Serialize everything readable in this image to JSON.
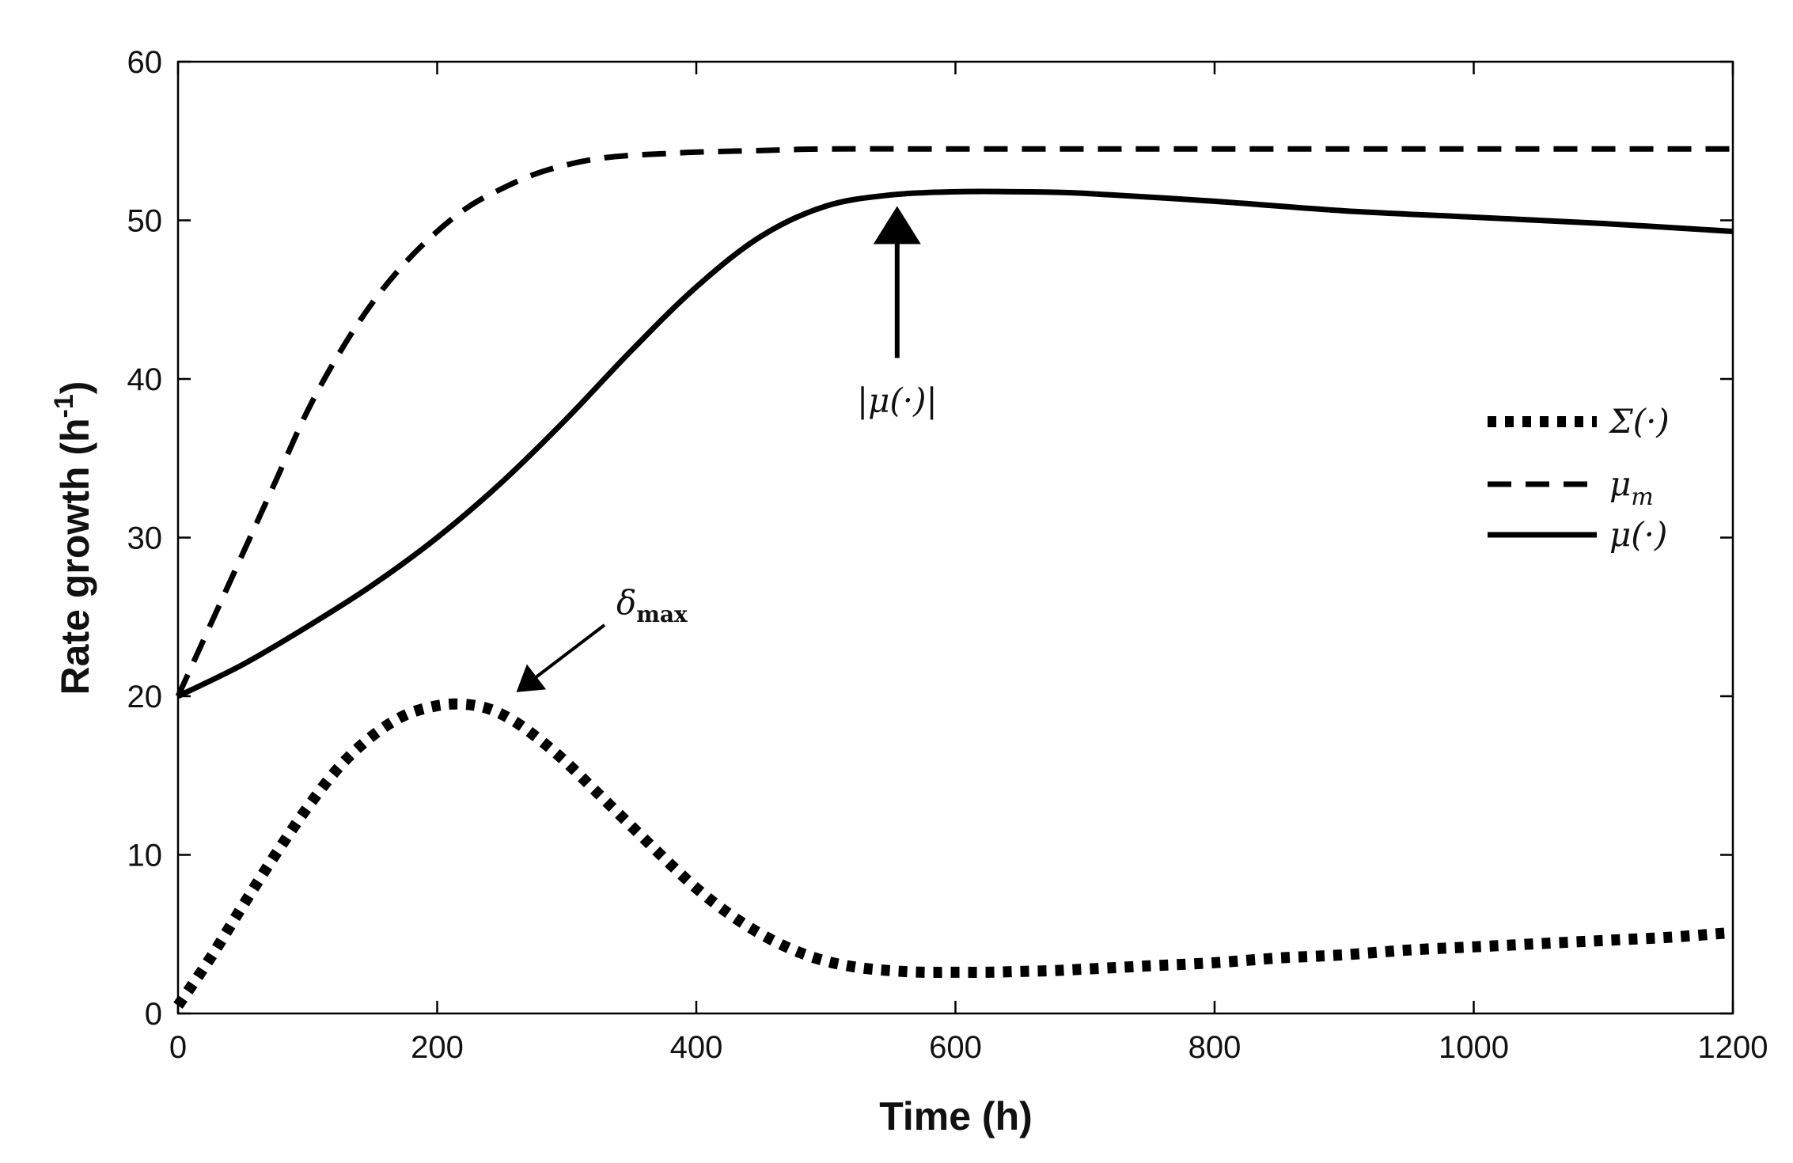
{
  "chart_data": {
    "type": "line",
    "title": "",
    "xlabel": "Time (h)",
    "ylabel": "Rate growth (h",
    "ylabel_superscript": "-1",
    "ylabel_suffix": ")",
    "xlim": [
      0,
      1200
    ],
    "ylim": [
      0,
      60
    ],
    "xticks": [
      0,
      200,
      400,
      600,
      800,
      1000,
      1200
    ],
    "yticks": [
      0,
      10,
      20,
      30,
      40,
      50,
      60
    ],
    "grid": false,
    "legend_position": "right",
    "series": [
      {
        "name": "Σ(·)",
        "style": "dotted",
        "x": [
          0,
          25,
          50,
          75,
          100,
          125,
          150,
          175,
          200,
          220,
          240,
          260,
          280,
          300,
          325,
          350,
          375,
          400,
          425,
          450,
          475,
          500,
          525,
          550,
          575,
          600,
          625,
          650,
          675,
          700,
          750,
          800,
          850,
          900,
          950,
          1000,
          1050,
          1100,
          1150,
          1200
        ],
        "values": [
          0.5,
          3.5,
          6.8,
          10.0,
          13.0,
          15.6,
          17.5,
          18.8,
          19.4,
          19.5,
          19.2,
          18.4,
          17.2,
          15.8,
          13.8,
          11.8,
          9.8,
          7.9,
          6.3,
          5.0,
          4.0,
          3.3,
          2.9,
          2.7,
          2.6,
          2.6,
          2.6,
          2.65,
          2.7,
          2.8,
          3.0,
          3.2,
          3.5,
          3.7,
          4.0,
          4.2,
          4.4,
          4.6,
          4.8,
          5.1
        ]
      },
      {
        "name": "μ_m",
        "style": "dashed",
        "x": [
          0,
          25,
          50,
          75,
          100,
          125,
          150,
          175,
          200,
          225,
          250,
          275,
          300,
          325,
          350,
          375,
          400,
          450,
          500,
          600,
          700,
          800,
          1000,
          1200
        ],
        "values": [
          20.0,
          24.5,
          29.0,
          33.5,
          38.0,
          41.7,
          44.8,
          47.3,
          49.3,
          50.9,
          52.0,
          52.9,
          53.5,
          53.9,
          54.1,
          54.2,
          54.3,
          54.4,
          54.5,
          54.5,
          54.5,
          54.5,
          54.5,
          54.5
        ]
      },
      {
        "name": "μ(·)",
        "style": "solid",
        "x": [
          0,
          50,
          100,
          150,
          200,
          250,
          300,
          350,
          400,
          450,
          500,
          550,
          600,
          650,
          700,
          800,
          900,
          1000,
          1100,
          1200
        ],
        "values": [
          20.0,
          22.0,
          24.4,
          27.0,
          30.0,
          33.5,
          37.5,
          41.8,
          45.8,
          49.0,
          50.9,
          51.6,
          51.8,
          51.8,
          51.7,
          51.2,
          50.6,
          50.2,
          49.8,
          49.3
        ]
      }
    ],
    "legend": [
      {
        "series": "Σ(·)",
        "label_main": "Σ(·)",
        "label_sub": ""
      },
      {
        "series": "μ_m",
        "label_main": "μ",
        "label_sub": "m"
      },
      {
        "series": "μ(·)",
        "label_main": "μ(·)",
        "label_sub": ""
      }
    ],
    "annotations": [
      {
        "name": "delta-max",
        "text_main": "δ",
        "text_sub": "max",
        "point": [
          265,
          20.5
        ],
        "arrow": "diagonal"
      },
      {
        "name": "mu-abs",
        "text_main": "|μ(·)|",
        "text_sub": "",
        "point": [
          555,
          50.3
        ],
        "arrow": "vertical"
      }
    ]
  }
}
